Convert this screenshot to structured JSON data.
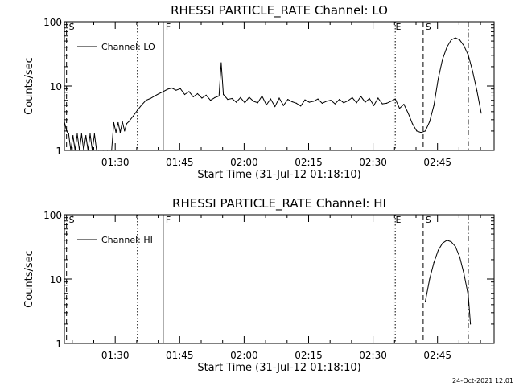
{
  "chart_data": [
    {
      "type": "line",
      "title": "RHESSI PARTICLE_RATE Channel: LO",
      "xlabel": "Start Time (31-Jul-12 01:18:10)",
      "ylabel": "Counts/sec",
      "yscale": "log",
      "ylim": [
        1,
        100
      ],
      "xlim": [
        "01:18:10",
        "02:58:10"
      ],
      "x_ticks": [
        "01:30",
        "01:45",
        "02:00",
        "02:15",
        "02:30",
        "02:45"
      ],
      "y_ticks": [
        "1",
        "10",
        "100"
      ],
      "legend": {
        "position": "top-left",
        "entries": [
          "Channel: LO"
        ]
      },
      "series": [
        {
          "name": "Channel: LO",
          "points": [
            [
              "01:18:10",
              2.8
            ],
            [
              "01:18:40",
              2.0
            ],
            [
              "01:19:10",
              1.8
            ],
            [
              "01:19:40",
              1.0
            ],
            [
              "01:20:10",
              1.7
            ],
            [
              "01:20:40",
              1.0
            ],
            [
              "01:21:10",
              1.8
            ],
            [
              "01:21:40",
              1.0
            ],
            [
              "01:22:10",
              1.8
            ],
            [
              "01:22:40",
              1.0
            ],
            [
              "01:23:10",
              1.7
            ],
            [
              "01:23:40",
              1.0
            ],
            [
              "01:24:10",
              1.8
            ],
            [
              "01:24:40",
              1.0
            ],
            [
              "01:25:10",
              1.8
            ],
            [
              "01:25:40",
              1.0
            ],
            [
              "01:26:10",
              1.0
            ],
            [
              "01:27:10",
              1.0
            ],
            [
              "01:28:10",
              1.0
            ],
            [
              "01:29:10",
              1.0
            ],
            [
              "01:29:40",
              2.7
            ],
            [
              "01:30:10",
              1.9
            ],
            [
              "01:30:40",
              2.7
            ],
            [
              "01:31:10",
              1.9
            ],
            [
              "01:31:40",
              2.8
            ],
            [
              "01:32:10",
              2.0
            ],
            [
              "01:32:40",
              2.6
            ],
            [
              "01:33:10",
              2.8
            ],
            [
              "01:34:10",
              3.4
            ],
            [
              "01:35:10",
              4.2
            ],
            [
              "01:36:10",
              5.1
            ],
            [
              "01:37:10",
              6.0
            ],
            [
              "01:38:10",
              6.4
            ],
            [
              "01:39:10",
              7.0
            ],
            [
              "01:40:10",
              7.6
            ],
            [
              "01:41:10",
              8.2
            ],
            [
              "01:42:10",
              8.9
            ],
            [
              "01:43:10",
              9.3
            ],
            [
              "01:44:10",
              8.6
            ],
            [
              "01:45:10",
              9.1
            ],
            [
              "01:46:10",
              7.4
            ],
            [
              "01:47:10",
              8.2
            ],
            [
              "01:48:10",
              6.8
            ],
            [
              "01:49:10",
              7.6
            ],
            [
              "01:50:10",
              6.5
            ],
            [
              "01:51:10",
              7.2
            ],
            [
              "01:52:10",
              6.0
            ],
            [
              "01:53:10",
              6.6
            ],
            [
              "01:54:10",
              7.0
            ],
            [
              "01:54:40",
              23.0
            ],
            [
              "01:55:10",
              7.4
            ],
            [
              "01:56:10",
              6.2
            ],
            [
              "01:57:10",
              6.4
            ],
            [
              "01:58:10",
              5.6
            ],
            [
              "01:59:10",
              6.6
            ],
            [
              "02:00:10",
              5.5
            ],
            [
              "02:01:10",
              6.7
            ],
            [
              "02:02:10",
              5.8
            ],
            [
              "02:03:10",
              5.5
            ],
            [
              "02:04:10",
              7.0
            ],
            [
              "02:05:10",
              5.1
            ],
            [
              "02:06:10",
              6.3
            ],
            [
              "02:07:10",
              4.8
            ],
            [
              "02:08:10",
              6.5
            ],
            [
              "02:09:10",
              5.0
            ],
            [
              "02:10:10",
              6.2
            ],
            [
              "02:11:10",
              5.7
            ],
            [
              "02:12:10",
              5.4
            ],
            [
              "02:13:10",
              4.9
            ],
            [
              "02:14:10",
              6.1
            ],
            [
              "02:15:10",
              5.6
            ],
            [
              "02:16:10",
              5.8
            ],
            [
              "02:17:10",
              6.3
            ],
            [
              "02:18:10",
              5.4
            ],
            [
              "02:19:10",
              5.8
            ],
            [
              "02:20:10",
              6.0
            ],
            [
              "02:21:10",
              5.3
            ],
            [
              "02:22:10",
              6.2
            ],
            [
              "02:23:10",
              5.5
            ],
            [
              "02:24:10",
              5.9
            ],
            [
              "02:25:10",
              6.6
            ],
            [
              "02:26:10",
              5.5
            ],
            [
              "02:27:10",
              6.9
            ],
            [
              "02:28:10",
              5.6
            ],
            [
              "02:29:10",
              6.4
            ],
            [
              "02:30:10",
              5.0
            ],
            [
              "02:31:10",
              6.5
            ],
            [
              "02:32:10",
              5.3
            ],
            [
              "02:33:10",
              5.4
            ],
            [
              "02:34:10",
              5.8
            ],
            [
              "02:35:10",
              6.3
            ],
            [
              "02:36:10",
              4.5
            ],
            [
              "02:37:10",
              5.2
            ],
            [
              "02:38:10",
              3.8
            ],
            [
              "02:39:10",
              2.6
            ],
            [
              "02:40:10",
              2.0
            ],
            [
              "02:41:10",
              1.9
            ],
            [
              "02:42:10",
              2.0
            ],
            [
              "02:43:10",
              2.8
            ],
            [
              "02:44:10",
              5.0
            ],
            [
              "02:45:10",
              13.0
            ],
            [
              "02:46:10",
              26.0
            ],
            [
              "02:47:10",
              40.0
            ],
            [
              "02:48:10",
              52.0
            ],
            [
              "02:49:10",
              56.0
            ],
            [
              "02:50:10",
              52.0
            ],
            [
              "02:51:10",
              42.0
            ],
            [
              "02:52:10",
              30.0
            ],
            [
              "02:53:10",
              17.0
            ],
            [
              "02:54:10",
              8.5
            ],
            [
              "02:55:10",
              3.8
            ]
          ]
        }
      ],
      "event_markers": [
        {
          "label": "S",
          "x": "01:18:40",
          "style": "dashed"
        },
        {
          "label": "",
          "x": "01:35:10",
          "style": "dotted"
        },
        {
          "label": "F",
          "x": "01:41:10",
          "style": "solid"
        },
        {
          "label": "E",
          "x": "02:34:40",
          "style": "solid"
        },
        {
          "label": "",
          "x": "02:35:10",
          "style": "dotted"
        },
        {
          "label": "S",
          "x": "02:41:40",
          "style": "dashed"
        },
        {
          "label": "",
          "x": "02:52:10",
          "style": "dashdot"
        }
      ]
    },
    {
      "type": "line",
      "title": "RHESSI PARTICLE_RATE Channel: HI",
      "xlabel": "Start Time (31-Jul-12 01:18:10)",
      "ylabel": "Counts/sec",
      "yscale": "log",
      "ylim": [
        1,
        100
      ],
      "xlim": [
        "01:18:10",
        "02:58:10"
      ],
      "x_ticks": [
        "01:30",
        "01:45",
        "02:00",
        "02:15",
        "02:30",
        "02:45"
      ],
      "y_ticks": [
        "1",
        "10",
        "100"
      ],
      "legend": {
        "position": "top-left",
        "entries": [
          "Channel: HI"
        ]
      },
      "series": [
        {
          "name": "Channel: HI",
          "points": [
            [
              "02:42:10",
              4.5
            ],
            [
              "02:43:10",
              10.0
            ],
            [
              "02:44:10",
              18.0
            ],
            [
              "02:45:10",
              28.0
            ],
            [
              "02:46:10",
              36.0
            ],
            [
              "02:47:10",
              40.0
            ],
            [
              "02:48:10",
              38.0
            ],
            [
              "02:49:10",
              32.0
            ],
            [
              "02:50:10",
              22.0
            ],
            [
              "02:51:10",
              12.0
            ],
            [
              "02:52:10",
              5.5
            ],
            [
              "02:52:40",
              2.0
            ]
          ]
        }
      ],
      "event_markers": [
        {
          "label": "S",
          "x": "01:18:40",
          "style": "dashed"
        },
        {
          "label": "",
          "x": "01:35:10",
          "style": "dotted"
        },
        {
          "label": "F",
          "x": "01:41:10",
          "style": "solid"
        },
        {
          "label": "E",
          "x": "02:34:40",
          "style": "solid"
        },
        {
          "label": "",
          "x": "02:35:10",
          "style": "dotted"
        },
        {
          "label": "S",
          "x": "02:41:40",
          "style": "dashed"
        },
        {
          "label": "",
          "x": "02:52:10",
          "style": "dashdot"
        }
      ]
    }
  ],
  "footer": {
    "timestamp": "24-Oct-2021 12:01"
  }
}
